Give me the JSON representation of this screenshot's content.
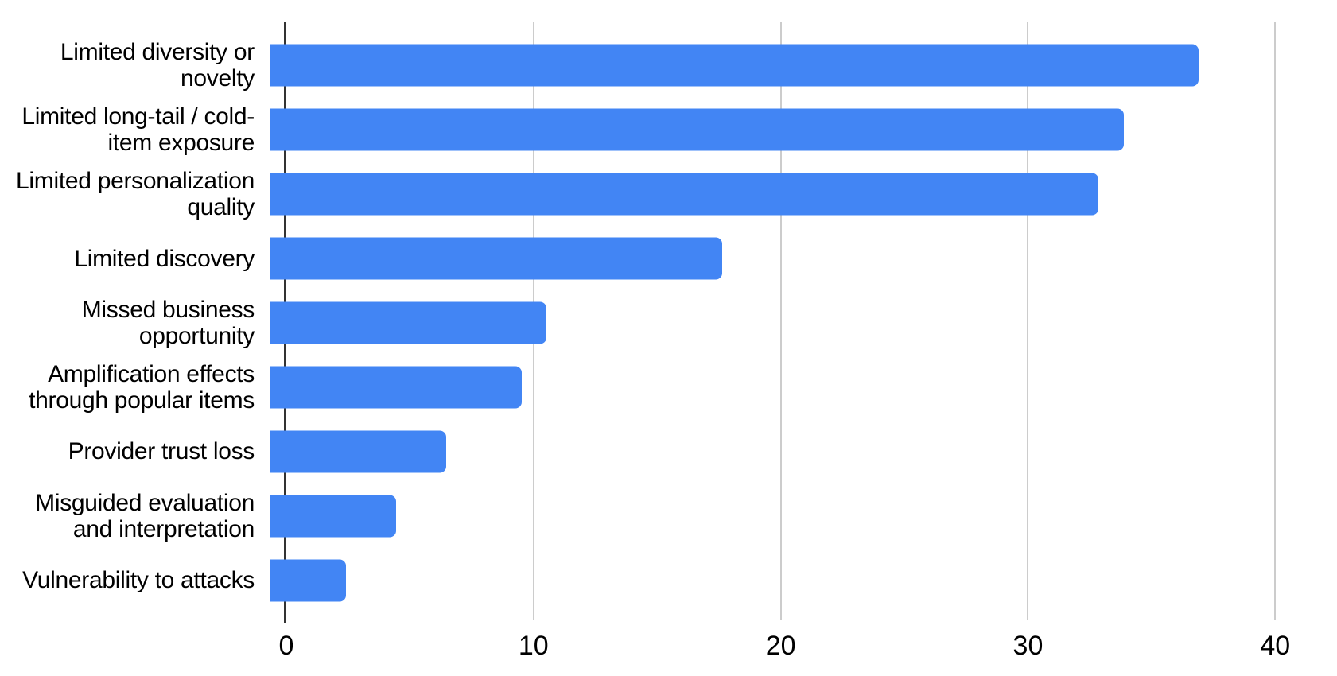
{
  "chart_data": {
    "type": "bar",
    "orientation": "horizontal",
    "title": "",
    "xlabel": "",
    "ylabel": "",
    "categories": [
      "Limited diversity or\nnovelty",
      "Limited long-tail / cold-\nitem exposure",
      "Limited personalization\nquality",
      "Limited discovery",
      "Missed business\nopportunity",
      "Amplification effects\nthrough popular items",
      "Provider trust loss",
      "Misguided evaluation\nand interpretation",
      "Vulnerability to attacks"
    ],
    "values": [
      37,
      34,
      33,
      18,
      11,
      10,
      7,
      5,
      3
    ],
    "x_ticks": [
      0,
      10,
      20,
      30,
      40
    ],
    "xlim": [
      0,
      42.5
    ],
    "grid": true,
    "legend_position": "none",
    "bar_color": "#4285F4",
    "gridline_color": "#CCCCCC",
    "axis_line_color": "#333333",
    "text_color": "#000000",
    "background_color": "#FFFFFF"
  }
}
